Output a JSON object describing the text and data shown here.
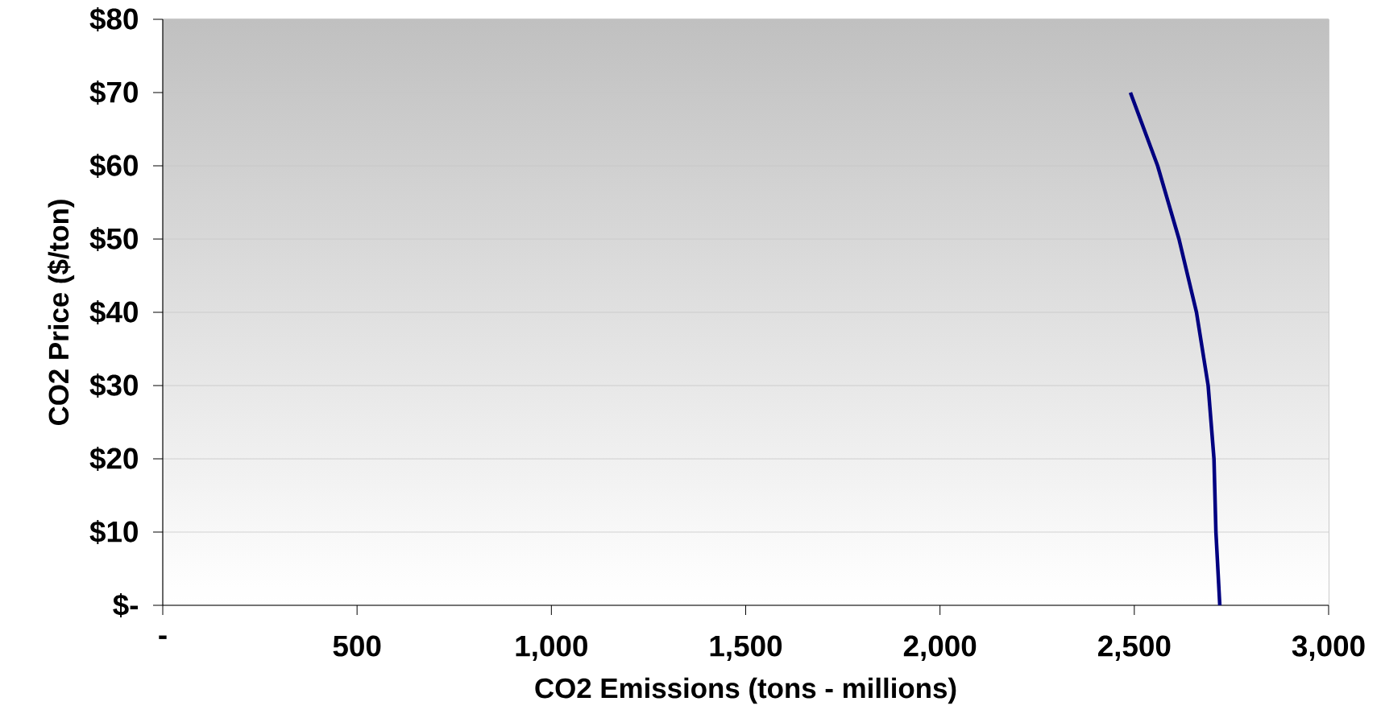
{
  "chart_data": {
    "type": "line",
    "xlabel": "CO2 Emissions (tons - millions)",
    "ylabel": "CO2 Price ($/ton)",
    "x": [
      2490,
      2560,
      2615,
      2660,
      2690,
      2705,
      2710,
      2720
    ],
    "series": [
      {
        "color": "#000080",
        "values": [
          70,
          60,
          50,
          40,
          30,
          20,
          10,
          0
        ]
      }
    ],
    "xlim": [
      0,
      3000
    ],
    "ylim": [
      0,
      80
    ],
    "xticks": [
      {
        "value": 0,
        "label": "-"
      },
      {
        "value": 500,
        "label": "500"
      },
      {
        "value": 1000,
        "label": "1,000"
      },
      {
        "value": 1500,
        "label": "1,500"
      },
      {
        "value": 2000,
        "label": "2,000"
      },
      {
        "value": 2500,
        "label": "2,500"
      },
      {
        "value": 3000,
        "label": "3,000"
      }
    ],
    "yticks": [
      {
        "value": 0,
        "label": "$-"
      },
      {
        "value": 10,
        "label": "$10"
      },
      {
        "value": 20,
        "label": "$20"
      },
      {
        "value": 30,
        "label": "$30"
      },
      {
        "value": 40,
        "label": "$40"
      },
      {
        "value": 50,
        "label": "$50"
      },
      {
        "value": 60,
        "label": "$60"
      },
      {
        "value": 70,
        "label": "$70"
      },
      {
        "value": 80,
        "label": "$80"
      }
    ],
    "grid": "y",
    "marker": "none",
    "line_style": "solid"
  }
}
